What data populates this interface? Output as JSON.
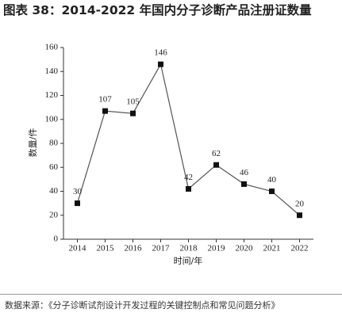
{
  "chart_data": {
    "type": "line",
    "title": "图表 38：2014-2022 年国内分子诊断产品注册证数量",
    "y_label": "数量/件",
    "x_label": "时间/年",
    "categories": [
      "2014",
      "2015",
      "2016",
      "2017",
      "2018",
      "2019",
      "2020",
      "2021",
      "2022"
    ],
    "values": [
      30,
      107,
      105,
      146,
      42,
      62,
      46,
      40,
      20
    ],
    "color": "#555555",
    "ylim": [
      0,
      160
    ],
    "yticks": [
      0,
      20,
      40,
      60,
      80,
      100,
      120,
      140,
      160
    ],
    "grid": false
  },
  "source": "数据来源：《分子诊断试剂设计开发过程的关键控制点和常见问题分析》"
}
